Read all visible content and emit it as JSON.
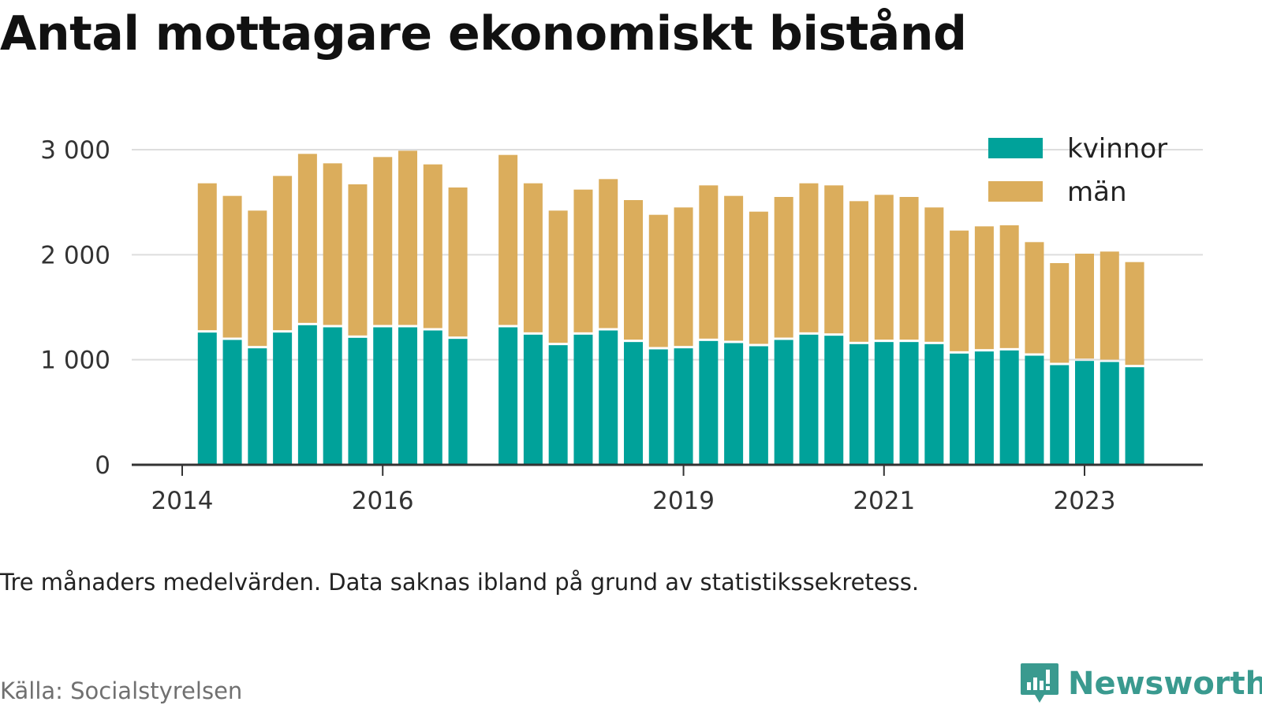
{
  "title": "Antal mottagare ekonomiskt bistånd",
  "note": "Tre månaders medelvärden. Data saknas ibland på grund av statistikssekretess.",
  "source": "Källa: Socialstyrelsen",
  "brand": "Newsworthy",
  "colors": {
    "kvinnor": "#00a29a",
    "man": "#dbad5c",
    "grid": "#dddddd",
    "axis": "#333333",
    "brand": "#3a9a8f"
  },
  "icons": {
    "brand_logo": "bar-chart-speech-bubble-icon"
  },
  "chart_data": {
    "type": "bar",
    "stacked": true,
    "ylim": [
      0,
      3000
    ],
    "yticks": [
      0,
      1000,
      2000,
      3000
    ],
    "ytick_labels": [
      "0",
      "1 000",
      "2 000",
      "3 000"
    ],
    "xtick_labels": [
      {
        "label": "2014",
        "x": 2014.0
      },
      {
        "label": "2016",
        "x": 2016.0
      },
      {
        "label": "2019",
        "x": 2019.0
      },
      {
        "label": "2021",
        "x": 2021.0
      },
      {
        "label": "2023",
        "x": 2023.0
      }
    ],
    "grid": true,
    "legend_position": "top-right",
    "x": [
      2014.25,
      2014.5,
      2014.75,
      2015.0,
      2015.25,
      2015.5,
      2015.75,
      2016.0,
      2016.25,
      2016.5,
      2016.75,
      2017.25,
      2017.5,
      2017.75,
      2018.0,
      2018.25,
      2018.5,
      2018.75,
      2019.0,
      2019.25,
      2019.5,
      2019.75,
      2020.0,
      2020.25,
      2020.5,
      2020.75,
      2021.0,
      2021.25,
      2021.5,
      2021.75,
      2022.0,
      2022.25,
      2022.5,
      2022.75,
      2023.0,
      2023.25,
      2023.5
    ],
    "series": [
      {
        "name": "kvinnor",
        "color": "#00a29a",
        "values": [
          1270,
          1200,
          1120,
          1270,
          1340,
          1320,
          1220,
          1320,
          1320,
          1290,
          1210,
          1320,
          1250,
          1150,
          1250,
          1290,
          1180,
          1110,
          1120,
          1190,
          1170,
          1140,
          1200,
          1250,
          1240,
          1160,
          1180,
          1180,
          1160,
          1070,
          1090,
          1100,
          1050,
          960,
          1000,
          990,
          940
        ]
      },
      {
        "name": "män",
        "color": "#dbad5c",
        "values": [
          1410,
          1360,
          1300,
          1480,
          1620,
          1550,
          1450,
          1610,
          1670,
          1570,
          1430,
          1630,
          1430,
          1270,
          1370,
          1430,
          1340,
          1270,
          1330,
          1470,
          1390,
          1270,
          1350,
          1430,
          1420,
          1350,
          1390,
          1370,
          1290,
          1160,
          1180,
          1180,
          1070,
          960,
          1010,
          1040,
          990
        ]
      }
    ]
  }
}
